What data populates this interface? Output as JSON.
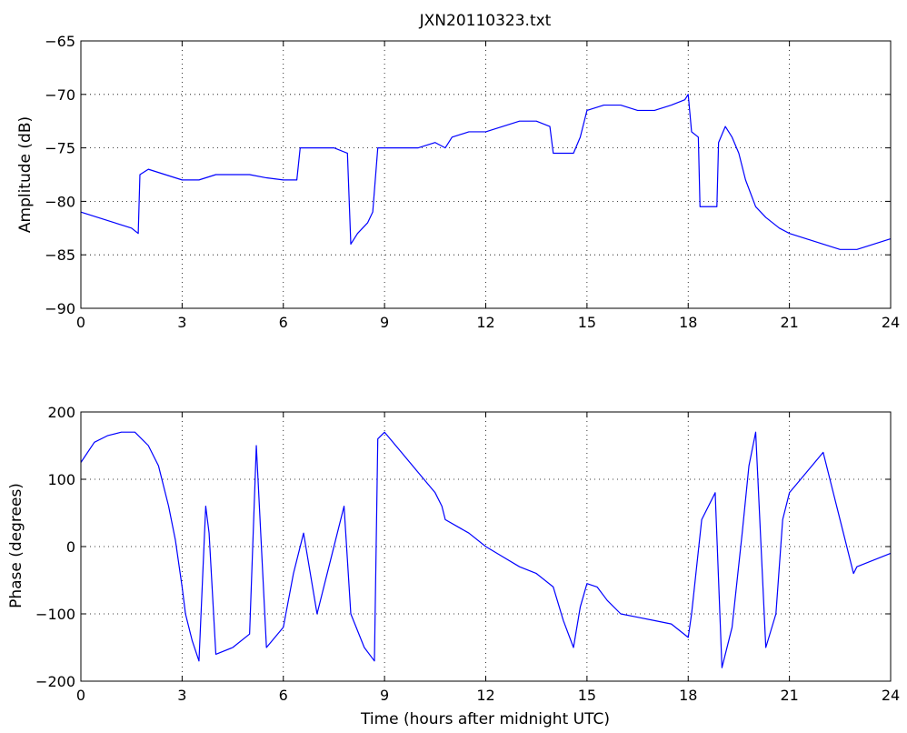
{
  "chart_data": [
    {
      "type": "line",
      "title": "JXN20110323.txt",
      "xlabel": "",
      "ylabel": "Amplitude (dB)",
      "xlim": [
        0,
        24
      ],
      "ylim": [
        -90,
        -65
      ],
      "xticks": [
        0,
        3,
        6,
        9,
        12,
        15,
        18,
        21,
        24
      ],
      "xtick_labels": [
        "0",
        "3",
        "6",
        "9",
        "12",
        "15",
        "18",
        "21",
        "24"
      ],
      "yticks": [
        -65,
        -70,
        -75,
        -80,
        -85,
        -90
      ],
      "ytick_labels": [
        "−65",
        "−70",
        "−75",
        "−80",
        "−85",
        "−90"
      ],
      "grid": true,
      "line_color": "#0000ff",
      "series": [
        {
          "x": [
            0,
            0.5,
            1.0,
            1.5,
            1.7,
            1.75,
            2.0,
            2.5,
            3.0,
            3.5,
            4.0,
            4.5,
            5.0,
            5.5,
            6.0,
            6.4,
            6.5,
            7.0,
            7.5,
            7.9,
            8.0,
            8.2,
            8.5,
            8.65,
            8.8,
            9.0,
            9.5,
            10.0,
            10.5,
            10.8,
            11.0,
            11.5,
            12.0,
            12.5,
            13.0,
            13.5,
            13.9,
            14.0,
            14.3,
            14.6,
            14.8,
            15.0,
            15.5,
            16.0,
            16.5,
            17.0,
            17.5,
            17.9,
            18.0,
            18.1,
            18.3,
            18.35,
            18.6,
            18.85,
            18.9,
            19.1,
            19.3,
            19.5,
            19.7,
            20.0,
            20.3,
            20.7,
            21.0,
            21.5,
            22.0,
            22.5,
            23.0,
            23.5,
            24.0
          ],
          "y": [
            -81,
            -81.5,
            -82,
            -82.5,
            -83,
            -77.5,
            -77,
            -77.5,
            -78,
            -78,
            -77.5,
            -77.5,
            -77.5,
            -77.8,
            -78,
            -78,
            -75,
            -75,
            -75,
            -75.5,
            -84,
            -83,
            -82,
            -81,
            -75,
            -75,
            -75,
            -75,
            -74.5,
            -75,
            -74,
            -73.5,
            -73.5,
            -73,
            -72.5,
            -72.5,
            -73,
            -75.5,
            -75.5,
            -75.5,
            -74,
            -71.5,
            -71,
            -71,
            -71.5,
            -71.5,
            -71,
            -70.5,
            -70,
            -73.5,
            -74,
            -80.5,
            -80.5,
            -80.5,
            -74.5,
            -73,
            -74,
            -75.5,
            -78,
            -80.5,
            -81.5,
            -82.5,
            -83,
            -83.5,
            -84,
            -84.5,
            -84.5,
            -84,
            -83.5
          ]
        }
      ]
    },
    {
      "type": "line",
      "title": "",
      "xlabel": "Time (hours after midnight UTC)",
      "ylabel": "Phase (degrees)",
      "xlim": [
        0,
        24
      ],
      "ylim": [
        -200,
        200
      ],
      "xticks": [
        0,
        3,
        6,
        9,
        12,
        15,
        18,
        21,
        24
      ],
      "xtick_labels": [
        "0",
        "3",
        "6",
        "9",
        "12",
        "15",
        "18",
        "21",
        "24"
      ],
      "yticks": [
        200,
        100,
        0,
        -100,
        -200
      ],
      "ytick_labels": [
        "200",
        "100",
        "0",
        "−100",
        "−200"
      ],
      "grid": true,
      "line_color": "#0000ff",
      "series": [
        {
          "x": [
            0,
            0.4,
            0.8,
            1.2,
            1.6,
            2.0,
            2.3,
            2.6,
            2.8,
            3.0,
            3.1,
            3.3,
            3.5,
            3.7,
            3.8,
            4.0,
            4.5,
            5.0,
            5.2,
            5.5,
            6.0,
            6.3,
            6.6,
            7.0,
            7.4,
            7.8,
            8.0,
            8.4,
            8.7,
            8.8,
            9.0,
            9.5,
            10.0,
            10.5,
            10.7,
            10.8,
            11.5,
            12.0,
            12.5,
            13.0,
            13.5,
            14.0,
            14.3,
            14.6,
            14.8,
            15.0,
            15.3,
            15.6,
            16.0,
            16.5,
            17.0,
            17.5,
            18.0,
            18.1,
            18.4,
            18.8,
            19.0,
            19.3,
            19.6,
            19.8,
            20.0,
            20.3,
            20.6,
            20.8,
            21.0,
            21.5,
            22.0,
            22.2,
            22.6,
            22.9,
            23.0,
            23.5,
            24.0
          ],
          "y": [
            125,
            155,
            165,
            170,
            170,
            150,
            120,
            60,
            10,
            -60,
            -100,
            -140,
            -170,
            60,
            20,
            -160,
            -150,
            -130,
            150,
            -150,
            -120,
            -40,
            20,
            -100,
            -20,
            60,
            -100,
            -150,
            -170,
            160,
            170,
            140,
            110,
            80,
            60,
            40,
            20,
            0,
            -15,
            -30,
            -40,
            -60,
            -110,
            -150,
            -90,
            -55,
            -60,
            -80,
            -100,
            -105,
            -110,
            -115,
            -135,
            -100,
            40,
            80,
            -180,
            -120,
            20,
            120,
            170,
            -150,
            -100,
            40,
            80,
            110,
            140,
            100,
            20,
            -40,
            -30,
            -20,
            -10
          ]
        }
      ]
    }
  ]
}
